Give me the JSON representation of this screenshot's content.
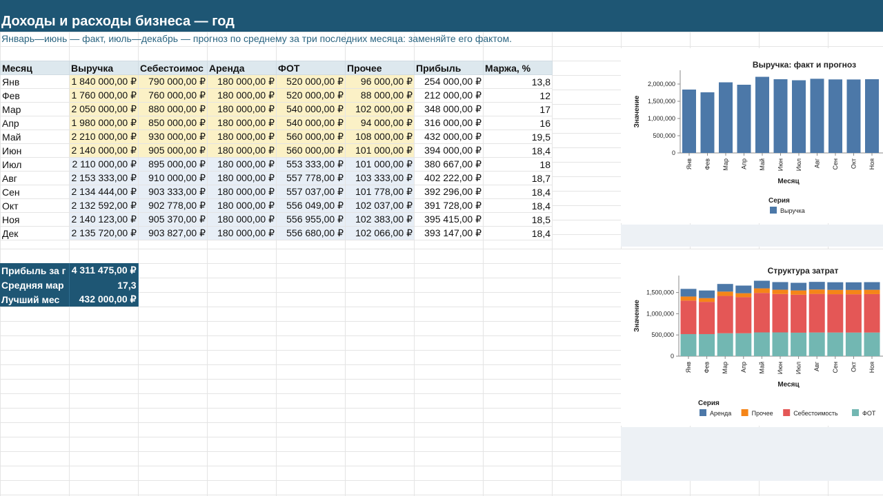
{
  "title": "Доходы и расходы бизнеса — год",
  "subtitle": "Январь—июнь — факт, июль—декабрь — прогноз по среднему за три последних месяца: заменяйте его фактом.",
  "headers": [
    "Месяц",
    "Выручка",
    "Себестоимос",
    "Аренда",
    "ФОТ",
    "Прочее",
    "Прибыль",
    "Маржа, %"
  ],
  "rows": [
    [
      "Янв",
      "1 840 000,00 ₽",
      "790 000,00 ₽",
      "180 000,00 ₽",
      "520 000,00 ₽",
      "96 000,00 ₽",
      "254 000,00 ₽",
      "13,8"
    ],
    [
      "Фев",
      "1 760 000,00 ₽",
      "760 000,00 ₽",
      "180 000,00 ₽",
      "520 000,00 ₽",
      "88 000,00 ₽",
      "212 000,00 ₽",
      "12"
    ],
    [
      "Мар",
      "2 050 000,00 ₽",
      "880 000,00 ₽",
      "180 000,00 ₽",
      "540 000,00 ₽",
      "102 000,00 ₽",
      "348 000,00 ₽",
      "17"
    ],
    [
      "Апр",
      "1 980 000,00 ₽",
      "850 000,00 ₽",
      "180 000,00 ₽",
      "540 000,00 ₽",
      "94 000,00 ₽",
      "316 000,00 ₽",
      "16"
    ],
    [
      "Май",
      "2 210 000,00 ₽",
      "930 000,00 ₽",
      "180 000,00 ₽",
      "560 000,00 ₽",
      "108 000,00 ₽",
      "432 000,00 ₽",
      "19,5"
    ],
    [
      "Июн",
      "2 140 000,00 ₽",
      "905 000,00 ₽",
      "180 000,00 ₽",
      "560 000,00 ₽",
      "101 000,00 ₽",
      "394 000,00 ₽",
      "18,4"
    ],
    [
      "Июл",
      "2 110 000,00 ₽",
      "895 000,00 ₽",
      "180 000,00 ₽",
      "553 333,00 ₽",
      "101 000,00 ₽",
      "380 667,00 ₽",
      "18"
    ],
    [
      "Авг",
      "2 153 333,00 ₽",
      "910 000,00 ₽",
      "180 000,00 ₽",
      "557 778,00 ₽",
      "103 333,00 ₽",
      "402 222,00 ₽",
      "18,7"
    ],
    [
      "Сен",
      "2 134 444,00 ₽",
      "903 333,00 ₽",
      "180 000,00 ₽",
      "557 037,00 ₽",
      "101 778,00 ₽",
      "392 296,00 ₽",
      "18,4"
    ],
    [
      "Окт",
      "2 132 592,00 ₽",
      "902 778,00 ₽",
      "180 000,00 ₽",
      "556 049,00 ₽",
      "102 037,00 ₽",
      "391 728,00 ₽",
      "18,4"
    ],
    [
      "Ноя",
      "2 140 123,00 ₽",
      "905 370,00 ₽",
      "180 000,00 ₽",
      "556 955,00 ₽",
      "102 383,00 ₽",
      "395 415,00 ₽",
      "18,5"
    ],
    [
      "Дек",
      "2 135 720,00 ₽",
      "903 827,00 ₽",
      "180 000,00 ₽",
      "556 680,00 ₽",
      "102 066,00 ₽",
      "393 147,00 ₽",
      "18,4"
    ]
  ],
  "summary": [
    {
      "label": "Прибыль за г",
      "value": "4 311 475,00 ₽"
    },
    {
      "label": "Средняя мар",
      "value": "17,3"
    },
    {
      "label": "Лучший мес",
      "value": "432 000,00 ₽"
    }
  ],
  "colors": {
    "title_band": "#1e5674",
    "fact_fill": "#fbf1c6",
    "forecast_fill": "#e7eef6",
    "header_fill": "#dde8ee",
    "bar_blue": "#4c78a8",
    "arenda": "#4c78a8",
    "prochee": "#f58518",
    "sebest": "#e45756",
    "fot": "#72b7b2"
  },
  "chart_data": [
    {
      "type": "bar",
      "title": "Выручка: факт и прогноз",
      "xlabel": "Месяц",
      "ylabel": "Значение",
      "categories": [
        "Янв",
        "Фев",
        "Мар",
        "Апр",
        "Май",
        "Июн",
        "Июл",
        "Авг",
        "Сен",
        "Окт",
        "Ноя"
      ],
      "series": [
        {
          "name": "Выручка",
          "values": [
            1840000,
            1760000,
            2050000,
            1980000,
            2210000,
            2140000,
            2110000,
            2153333,
            2134444,
            2132592,
            2140123
          ]
        }
      ],
      "yticks": [
        0,
        500000,
        1000000,
        1500000,
        2000000
      ],
      "ytick_labels": [
        "0",
        "500,000",
        "1,000,000",
        "1,500,000",
        "2,000,000"
      ],
      "ylim": [
        0,
        2400000
      ],
      "legend_title": "Серия",
      "legend_position": "bottom"
    },
    {
      "type": "bar",
      "stacked": true,
      "title": "Структура затрат",
      "xlabel": "Месяц",
      "ylabel": "Значение",
      "categories": [
        "Янв",
        "Фев",
        "Мар",
        "Апр",
        "Май",
        "Июн",
        "Июл",
        "Авг",
        "Сен",
        "Окт",
        "Ноя"
      ],
      "series": [
        {
          "name": "ФОТ",
          "values": [
            520000,
            520000,
            540000,
            540000,
            560000,
            560000,
            553333,
            557778,
            557037,
            556049,
            556955
          ]
        },
        {
          "name": "Себестоимость",
          "values": [
            790000,
            760000,
            880000,
            850000,
            930000,
            905000,
            895000,
            910000,
            903333,
            902778,
            905370
          ]
        },
        {
          "name": "Прочее",
          "values": [
            96000,
            88000,
            102000,
            94000,
            108000,
            101000,
            101000,
            103333,
            101778,
            102037,
            102383
          ]
        },
        {
          "name": "Аренда",
          "values": [
            180000,
            180000,
            180000,
            180000,
            180000,
            180000,
            180000,
            180000,
            180000,
            180000,
            180000
          ]
        }
      ],
      "legend_order": [
        "Аренда",
        "Прочее",
        "Себестоимость",
        "ФОТ"
      ],
      "yticks": [
        0,
        500000,
        1000000,
        1500000
      ],
      "ytick_labels": [
        "0",
        "500,000",
        "1,000,000",
        "1,500,000"
      ],
      "ylim": [
        0,
        1900000
      ],
      "legend_title": "Серия",
      "legend_position": "bottom"
    }
  ]
}
